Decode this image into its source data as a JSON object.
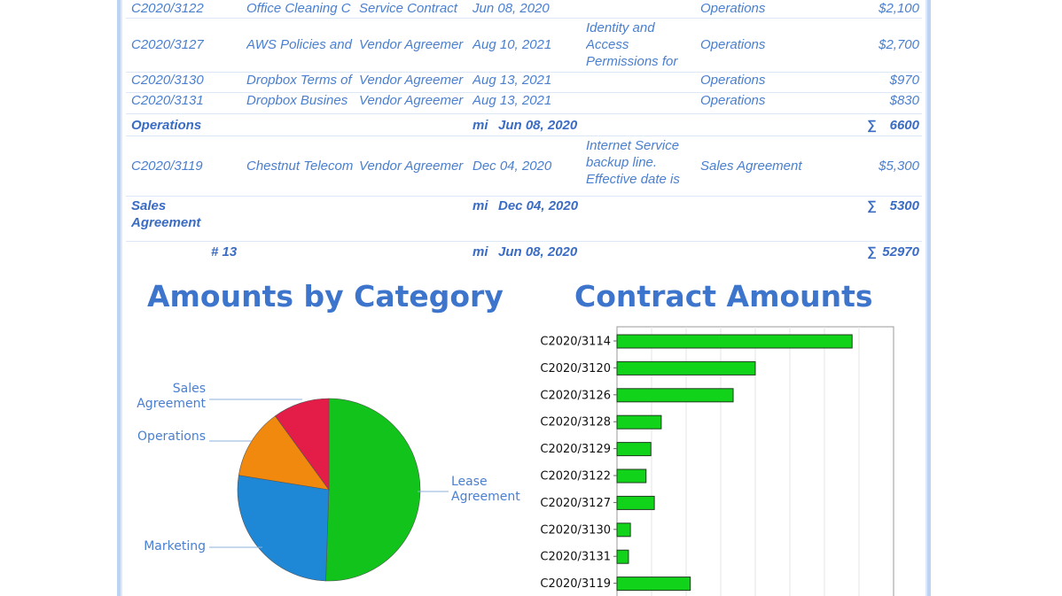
{
  "table": {
    "rows": [
      {
        "kind": "data",
        "id": "C2020/3122",
        "title": "Office Cleaning C",
        "type": "Service Contract",
        "date": "Jun 08, 2020",
        "desc": "",
        "category": "Operations",
        "amount": "$2,100"
      },
      {
        "kind": "data",
        "id": "C2020/3127",
        "title": "AWS Policies and",
        "type": "Vendor Agreemer",
        "date": "Aug 10, 2021",
        "desc": "Identity and Access Permissions for",
        "category": "Operations",
        "amount": "$2,700"
      },
      {
        "kind": "data",
        "id": "C2020/3130",
        "title": "Dropbox Terms of",
        "type": "Vendor Agreemer",
        "date": "Aug 13, 2021",
        "desc": "",
        "category": "Operations",
        "amount": "$970"
      },
      {
        "kind": "data",
        "id": "C2020/3131",
        "title": "Dropbox  Busines",
        "type": "Vendor Agreemer",
        "date": "Aug 13, 2021",
        "desc": "",
        "category": "Operations",
        "amount": "$830"
      },
      {
        "kind": "group",
        "label": "Operations",
        "min_label": "mi",
        "min_date": "Jun 08, 2020",
        "sum_symbol": "∑",
        "sum": "6600"
      },
      {
        "kind": "data",
        "id": "C2020/3119",
        "title": "Chestnut Telecom",
        "type": "Vendor Agreemer",
        "date": "Dec 04, 2020",
        "desc": "Internet Service backup line. Effective date is",
        "category": "Sales Agreement",
        "amount": "$5,300"
      },
      {
        "kind": "group",
        "label": "Sales Agreement",
        "min_label": "mi",
        "min_date": "Dec 04, 2020",
        "sum_symbol": "∑",
        "sum": "5300"
      },
      {
        "kind": "total",
        "label": "# 13",
        "min_label": "mi",
        "min_date": "Jun 08, 2020",
        "sum_symbol": "∑",
        "sum": "52970"
      }
    ]
  },
  "pie_title": "Amounts by Category",
  "bar_title": "Contract Amounts",
  "chart_data": [
    {
      "type": "pie",
      "title": "Amounts by Category",
      "slices": [
        {
          "label": "Lease Agreement",
          "value": 26770,
          "color": "#11c31a"
        },
        {
          "label": "Marketing",
          "value": 14300,
          "color": "#1e87d6"
        },
        {
          "label": "Operations",
          "value": 6600,
          "color": "#f0890e"
        },
        {
          "label": "Sales Agreement",
          "value": 5300,
          "color": "#e31c48"
        }
      ]
    },
    {
      "type": "bar",
      "orientation": "horizontal",
      "title": "Contract Amounts",
      "categories": [
        "C2020/3114",
        "C2020/3120",
        "C2020/3126",
        "C2020/3128",
        "C2020/3129",
        "C2020/3122",
        "C2020/3127",
        "C2020/3130",
        "C2020/3131",
        "C2020/3119"
      ],
      "values": [
        17000,
        10000,
        8400,
        3200,
        2450,
        2100,
        2700,
        970,
        830,
        5300
      ],
      "xlim": [
        0,
        20000
      ],
      "grid": true,
      "bar_color": "#11d41a"
    }
  ]
}
